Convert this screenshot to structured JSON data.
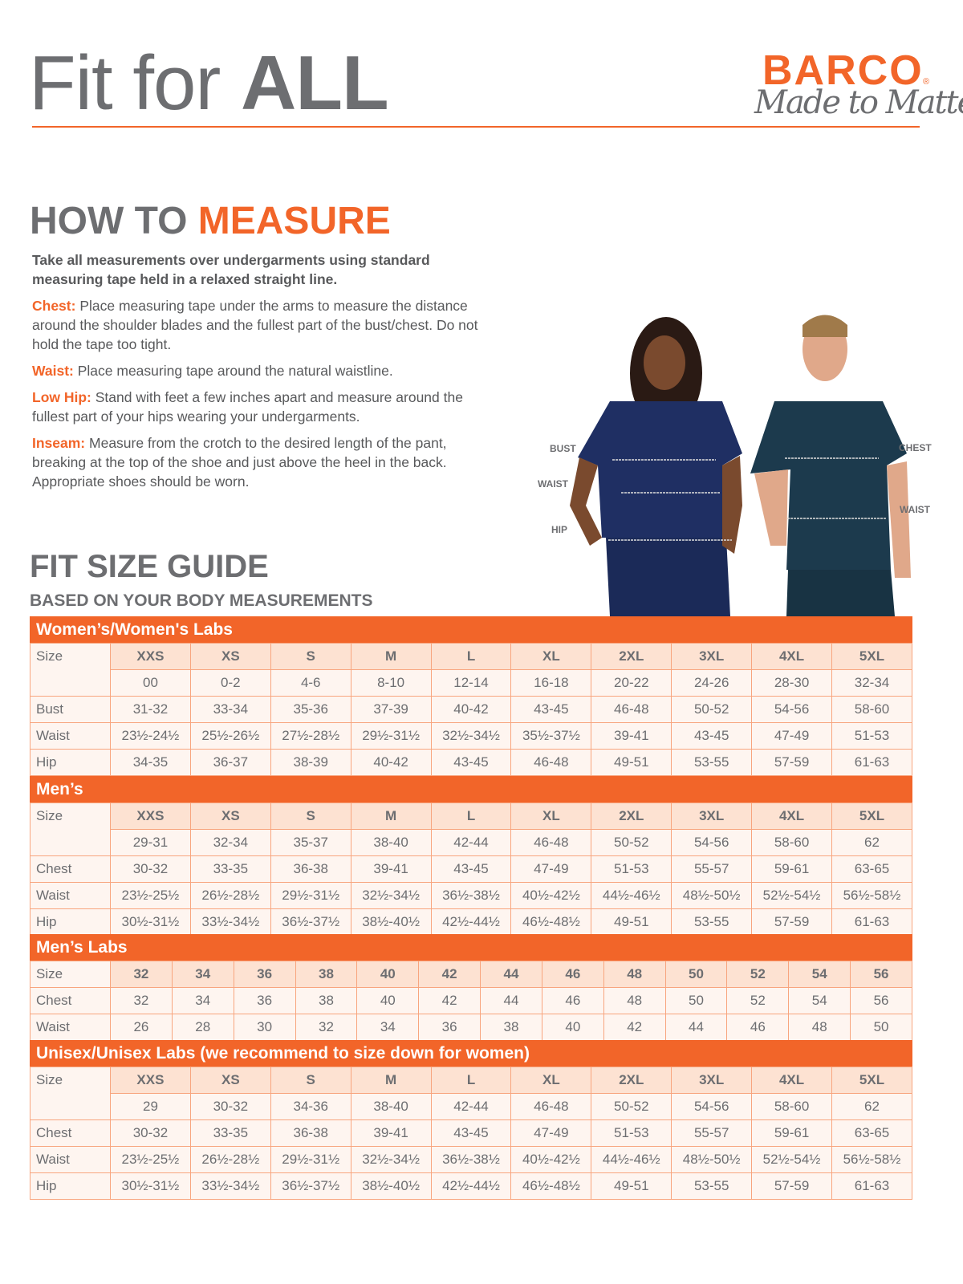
{
  "header": {
    "title_light": "Fit for ",
    "title_bold": "ALL",
    "brand": "BARCO",
    "brand_mark": "®",
    "tagline": "Made to Matter"
  },
  "measure": {
    "title_gray": "HOW TO ",
    "title_orange": "MEASURE",
    "intro": "Take all measurements over undergarments using standard measuring tape held in a relaxed straight line.",
    "items": [
      {
        "label": "Chest:",
        "text": "Place measuring tape under the arms to measure the distance around the shoulder blades and the fullest part of the bust/chest. Do not hold the tape too tight."
      },
      {
        "label": "Waist:",
        "text": "Place measuring tape around the natural waistline."
      },
      {
        "label": "Low Hip:",
        "text": "Stand with feet a few inches apart and measure around the fullest part of your hips wearing your undergarments."
      },
      {
        "label": "Inseam:",
        "text": "Measure from the crotch to the desired length of the pant, breaking at the top of the shoe and just above the heel in the back. Appropriate shoes should be worn."
      }
    ]
  },
  "figure": {
    "woman_labels": [
      "BUST",
      "WAIST",
      "HIP"
    ],
    "man_labels": [
      "CHEST",
      "WAIST"
    ],
    "woman_scrub": "#1f2f63",
    "man_scrub": "#1c3a4d"
  },
  "guide": {
    "title": "FIT SIZE GUIDE",
    "subtitle": "BASED ON YOUR BODY MEASUREMENTS"
  },
  "colors": {
    "accent": "#f26529",
    "header_cell": "#fde2d2",
    "body_cell": "#fef5f0",
    "border": "#f8a57e"
  },
  "tables": [
    {
      "title": "Women’s/Women's Labs",
      "sizes": [
        "XXS",
        "XS",
        "S",
        "M",
        "L",
        "XL",
        "2XL",
        "3XL",
        "4XL",
        "5XL"
      ],
      "numeric": [
        "00",
        "0-2",
        "4-6",
        "8-10",
        "12-14",
        "16-18",
        "20-22",
        "24-26",
        "28-30",
        "32-34"
      ],
      "rows": [
        {
          "label": "Bust",
          "values": [
            "31-32",
            "33-34",
            "35-36",
            "37-39",
            "40-42",
            "43-45",
            "46-48",
            "50-52",
            "54-56",
            "58-60"
          ]
        },
        {
          "label": "Waist",
          "values": [
            "23½-24½",
            "25½-26½",
            "27½-28½",
            "29½-31½",
            "32½-34½",
            "35½-37½",
            "39-41",
            "43-45",
            "47-49",
            "51-53"
          ]
        },
        {
          "label": "Hip",
          "values": [
            "34-35",
            "36-37",
            "38-39",
            "40-42",
            "43-45",
            "46-48",
            "49-51",
            "53-55",
            "57-59",
            "61-63"
          ]
        }
      ]
    },
    {
      "title": "Men’s",
      "sizes": [
        "XXS",
        "XS",
        "S",
        "M",
        "L",
        "XL",
        "2XL",
        "3XL",
        "4XL",
        "5XL"
      ],
      "numeric": [
        "29-31",
        "32-34",
        "35-37",
        "38-40",
        "42-44",
        "46-48",
        "50-52",
        "54-56",
        "58-60",
        "62"
      ],
      "rows": [
        {
          "label": "Chest",
          "values": [
            "30-32",
            "33-35",
            "36-38",
            "39-41",
            "43-45",
            "47-49",
            "51-53",
            "55-57",
            "59-61",
            "63-65"
          ]
        },
        {
          "label": "Waist",
          "values": [
            "23½-25½",
            "26½-28½",
            "29½-31½",
            "32½-34½",
            "36½-38½",
            "40½-42½",
            "44½-46½",
            "48½-50½",
            "52½-54½",
            "56½-58½"
          ]
        },
        {
          "label": "Hip",
          "values": [
            "30½-31½",
            "33½-34½",
            "36½-37½",
            "38½-40½",
            "42½-44½",
            "46½-48½",
            "49-51",
            "53-55",
            "57-59",
            "61-63"
          ]
        }
      ]
    },
    {
      "title": "Men’s Labs",
      "sizes": [
        "32",
        "34",
        "36",
        "38",
        "40",
        "42",
        "44",
        "46",
        "48",
        "50",
        "52",
        "54",
        "56"
      ],
      "rows": [
        {
          "label": "Chest",
          "values": [
            "32",
            "34",
            "36",
            "38",
            "40",
            "42",
            "44",
            "46",
            "48",
            "50",
            "52",
            "54",
            "56"
          ]
        },
        {
          "label": "Waist",
          "values": [
            "26",
            "28",
            "30",
            "32",
            "34",
            "36",
            "38",
            "40",
            "42",
            "44",
            "46",
            "48",
            "50"
          ]
        }
      ]
    },
    {
      "title": "Unisex/Unisex Labs (we recommend to size down for women)",
      "sizes": [
        "XXS",
        "XS",
        "S",
        "M",
        "L",
        "XL",
        "2XL",
        "3XL",
        "4XL",
        "5XL"
      ],
      "numeric": [
        "29",
        "30-32",
        "34-36",
        "38-40",
        "42-44",
        "46-48",
        "50-52",
        "54-56",
        "58-60",
        "62"
      ],
      "rows": [
        {
          "label": "Chest",
          "values": [
            "30-32",
            "33-35",
            "36-38",
            "39-41",
            "43-45",
            "47-49",
            "51-53",
            "55-57",
            "59-61",
            "63-65"
          ]
        },
        {
          "label": "Waist",
          "values": [
            "23½-25½",
            "26½-28½",
            "29½-31½",
            "32½-34½",
            "36½-38½",
            "40½-42½",
            "44½-46½",
            "48½-50½",
            "52½-54½",
            "56½-58½"
          ]
        },
        {
          "label": "Hip",
          "values": [
            "30½-31½",
            "33½-34½",
            "36½-37½",
            "38½-40½",
            "42½-44½",
            "46½-48½",
            "49-51",
            "53-55",
            "57-59",
            "61-63"
          ]
        }
      ]
    }
  ],
  "size_label": "Size"
}
